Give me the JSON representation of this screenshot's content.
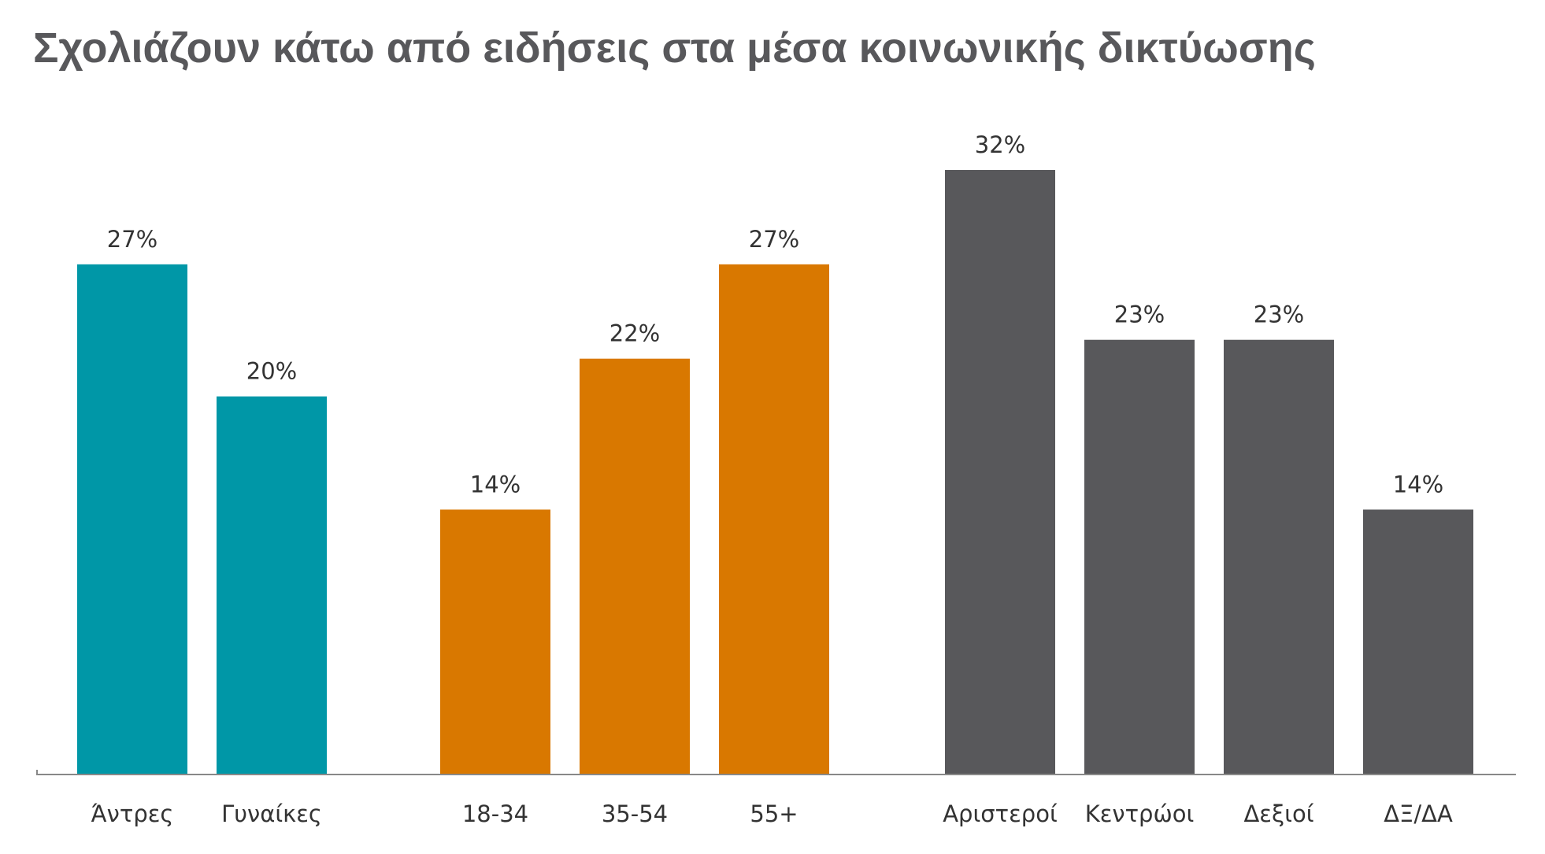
{
  "chart_data": {
    "type": "bar",
    "title": "Σχολιάζουν κάτω από ειδήσεις στα μέσα κοινωνικής δικτύωσης",
    "xlabel": "",
    "ylabel": "",
    "ylim": [
      0,
      32
    ],
    "grid": false,
    "legend": "none",
    "value_suffix": "%",
    "groups": [
      {
        "color": "#0097a7",
        "categories": [
          "Άντρες",
          "Γυναίκες"
        ],
        "values": [
          27,
          20
        ]
      },
      {
        "color": "#d97800",
        "categories": [
          "18-34",
          "35-54",
          "55+"
        ],
        "values": [
          14,
          22,
          27
        ]
      },
      {
        "color": "#58585b",
        "categories": [
          "Αριστεροί",
          "Κεντρώοι",
          "Δεξιοί",
          "ΔΞ/ΔΑ"
        ],
        "values": [
          32,
          23,
          23,
          14
        ]
      }
    ]
  }
}
